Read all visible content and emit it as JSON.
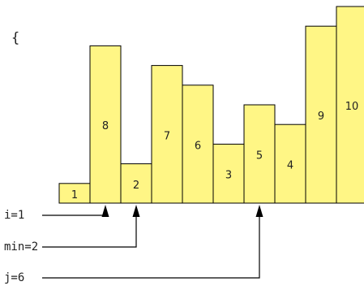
{
  "brace": "{",
  "bars": [
    {
      "label": "1",
      "value": 1
    },
    {
      "label": "8",
      "value": 8
    },
    {
      "label": "2",
      "value": 2
    },
    {
      "label": "7",
      "value": 7
    },
    {
      "label": "6",
      "value": 6
    },
    {
      "label": "3",
      "value": 3
    },
    {
      "label": "5",
      "value": 5
    },
    {
      "label": "4",
      "value": 4
    },
    {
      "label": "9",
      "value": 9
    },
    {
      "label": "10",
      "value": 10
    }
  ],
  "pointers": [
    {
      "label": "i=1",
      "index": 1
    },
    {
      "label": "min=2",
      "index": 2
    },
    {
      "label": "j=6",
      "index": 6
    }
  ],
  "colors": {
    "bar_fill": "#fff685",
    "stroke": "#000000",
    "text": "#222222"
  }
}
